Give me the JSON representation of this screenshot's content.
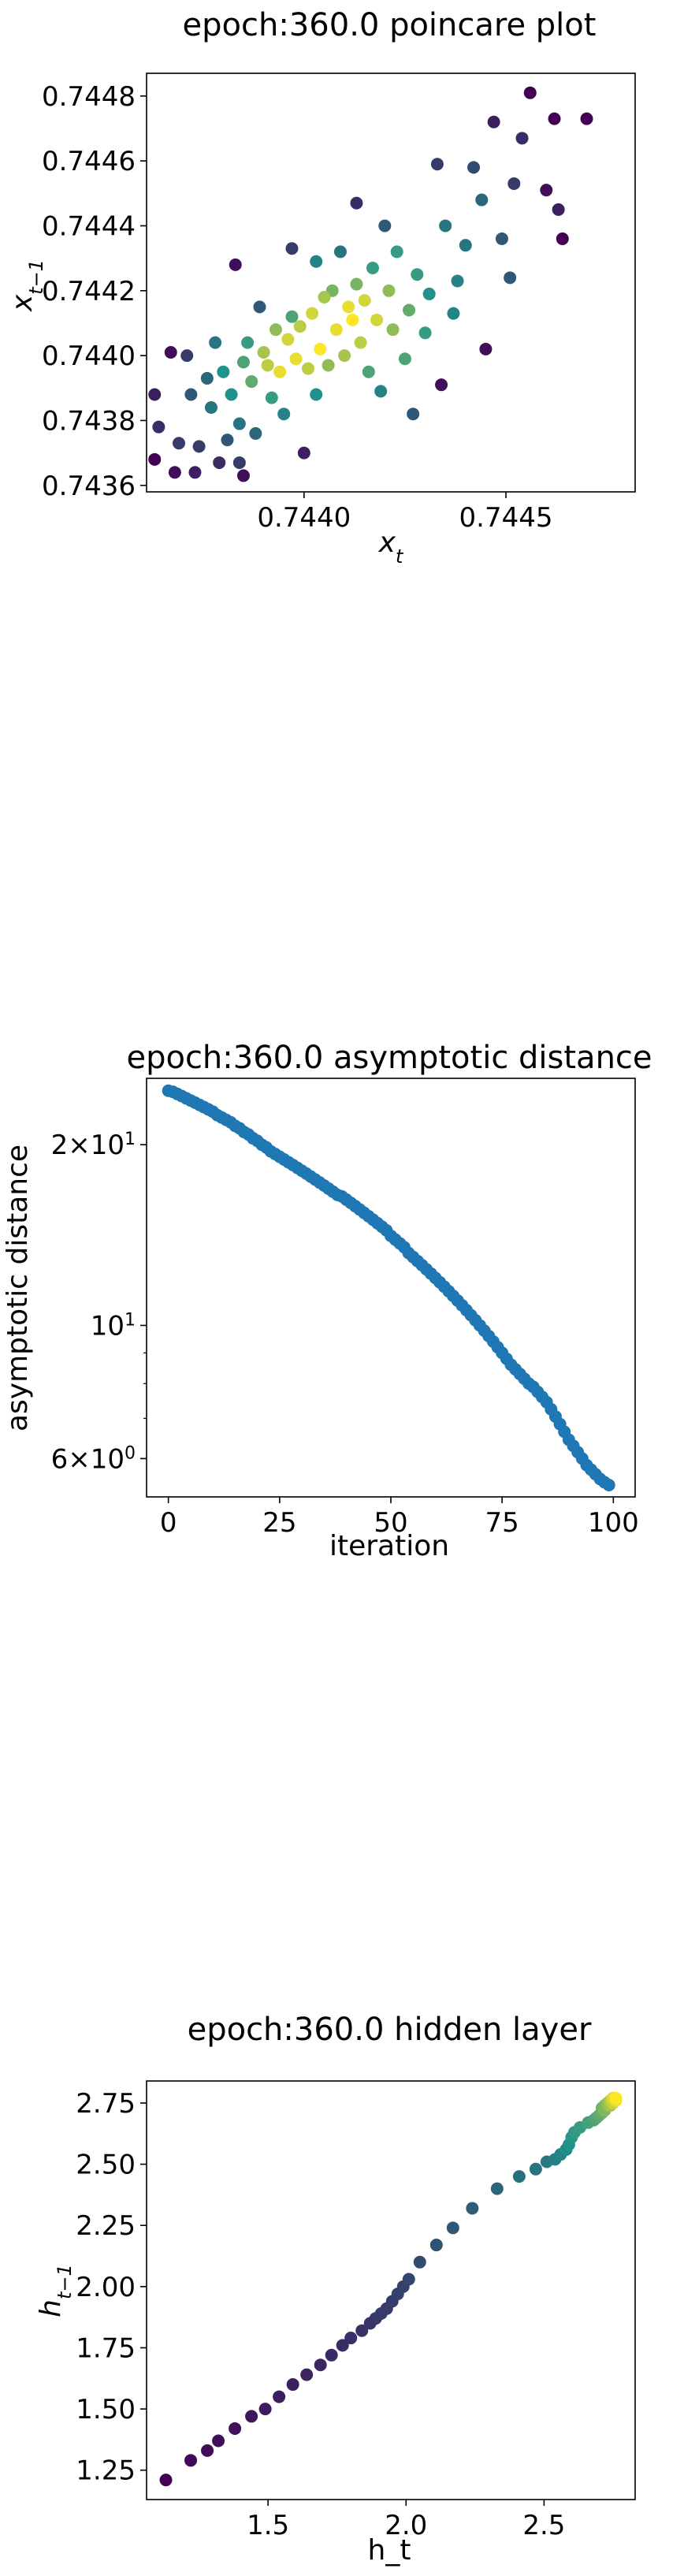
{
  "chart_data": [
    {
      "type": "scatter",
      "title": "epoch:360.0 poincare plot",
      "xlabel": "x_t",
      "ylabel": "x_{t-1}",
      "xlim": [
        0.74361,
        0.74482
      ],
      "ylim": [
        0.74358,
        0.74487
      ],
      "x_ticks": [
        {
          "v": 0.744,
          "label": "0.7440"
        },
        {
          "v": 0.7445,
          "label": "0.7445"
        }
      ],
      "y_ticks": [
        {
          "v": 0.7436,
          "label": "0.7436"
        },
        {
          "v": 0.7438,
          "label": "0.7438"
        },
        {
          "v": 0.744,
          "label": "0.7440"
        },
        {
          "v": 0.7442,
          "label": "0.7442"
        },
        {
          "v": 0.7444,
          "label": "0.7444"
        },
        {
          "v": 0.7446,
          "label": "0.7446"
        },
        {
          "v": 0.7448,
          "label": "0.7448"
        }
      ],
      "grid": false,
      "legend": "none",
      "colormap": "viridis",
      "colors": {
        "low": "#440154",
        "mid": "#21918c",
        "high": "#fde725"
      },
      "points": [
        {
          "x": 0.74363,
          "y": 0.74368,
          "c": 0.0
        },
        {
          "x": 0.74363,
          "y": 0.74388,
          "c": 0.1
        },
        {
          "x": 0.74364,
          "y": 0.74378,
          "c": 0.15
        },
        {
          "x": 0.74367,
          "y": 0.74401,
          "c": 0.05
        },
        {
          "x": 0.74368,
          "y": 0.74364,
          "c": 0.05
        },
        {
          "x": 0.74369,
          "y": 0.74373,
          "c": 0.2
        },
        {
          "x": 0.74371,
          "y": 0.744,
          "c": 0.2
        },
        {
          "x": 0.74372,
          "y": 0.74388,
          "c": 0.3
        },
        {
          "x": 0.74373,
          "y": 0.74364,
          "c": 0.1
        },
        {
          "x": 0.74374,
          "y": 0.74372,
          "c": 0.2
        },
        {
          "x": 0.74376,
          "y": 0.74393,
          "c": 0.35
        },
        {
          "x": 0.74377,
          "y": 0.74384,
          "c": 0.4
        },
        {
          "x": 0.74378,
          "y": 0.74404,
          "c": 0.4
        },
        {
          "x": 0.74379,
          "y": 0.74367,
          "c": 0.15
        },
        {
          "x": 0.7438,
          "y": 0.74395,
          "c": 0.5
        },
        {
          "x": 0.74381,
          "y": 0.74374,
          "c": 0.3
        },
        {
          "x": 0.74382,
          "y": 0.74388,
          "c": 0.5
        },
        {
          "x": 0.74383,
          "y": 0.74428,
          "c": 0.05
        },
        {
          "x": 0.74384,
          "y": 0.74367,
          "c": 0.2
        },
        {
          "x": 0.74384,
          "y": 0.74379,
          "c": 0.4
        },
        {
          "x": 0.74385,
          "y": 0.74363,
          "c": 0.05
        },
        {
          "x": 0.74385,
          "y": 0.74398,
          "c": 0.6
        },
        {
          "x": 0.74386,
          "y": 0.74404,
          "c": 0.55
        },
        {
          "x": 0.74387,
          "y": 0.74392,
          "c": 0.65
        },
        {
          "x": 0.74388,
          "y": 0.74376,
          "c": 0.35
        },
        {
          "x": 0.74389,
          "y": 0.74415,
          "c": 0.3
        },
        {
          "x": 0.7439,
          "y": 0.74401,
          "c": 0.8
        },
        {
          "x": 0.74391,
          "y": 0.74397,
          "c": 0.85
        },
        {
          "x": 0.74392,
          "y": 0.74387,
          "c": 0.55
        },
        {
          "x": 0.74393,
          "y": 0.74408,
          "c": 0.75
        },
        {
          "x": 0.74394,
          "y": 0.74395,
          "c": 0.95
        },
        {
          "x": 0.74395,
          "y": 0.74382,
          "c": 0.45
        },
        {
          "x": 0.74396,
          "y": 0.74405,
          "c": 0.9
        },
        {
          "x": 0.74397,
          "y": 0.74412,
          "c": 0.6
        },
        {
          "x": 0.74397,
          "y": 0.74433,
          "c": 0.2
        },
        {
          "x": 0.74398,
          "y": 0.74399,
          "c": 0.95
        },
        {
          "x": 0.74399,
          "y": 0.74409,
          "c": 0.85
        },
        {
          "x": 0.744,
          "y": 0.7437,
          "c": 0.1
        },
        {
          "x": 0.74401,
          "y": 0.74396,
          "c": 0.85
        },
        {
          "x": 0.74402,
          "y": 0.74413,
          "c": 0.9
        },
        {
          "x": 0.74403,
          "y": 0.74388,
          "c": 0.5
        },
        {
          "x": 0.74403,
          "y": 0.74429,
          "c": 0.45
        },
        {
          "x": 0.74404,
          "y": 0.74402,
          "c": 1.0
        },
        {
          "x": 0.74405,
          "y": 0.74418,
          "c": 0.8
        },
        {
          "x": 0.74406,
          "y": 0.74397,
          "c": 0.75
        },
        {
          "x": 0.74407,
          "y": 0.7442,
          "c": 0.7
        },
        {
          "x": 0.74408,
          "y": 0.74408,
          "c": 0.95
        },
        {
          "x": 0.74409,
          "y": 0.74432,
          "c": 0.4
        },
        {
          "x": 0.7441,
          "y": 0.744,
          "c": 0.8
        },
        {
          "x": 0.74411,
          "y": 0.74415,
          "c": 0.95
        },
        {
          "x": 0.74412,
          "y": 0.74411,
          "c": 1.0
        },
        {
          "x": 0.74413,
          "y": 0.74447,
          "c": 0.15
        },
        {
          "x": 0.74413,
          "y": 0.74422,
          "c": 0.7
        },
        {
          "x": 0.74414,
          "y": 0.74404,
          "c": 0.85
        },
        {
          "x": 0.74415,
          "y": 0.74417,
          "c": 0.9
        },
        {
          "x": 0.74416,
          "y": 0.74395,
          "c": 0.6
        },
        {
          "x": 0.74417,
          "y": 0.74427,
          "c": 0.55
        },
        {
          "x": 0.74418,
          "y": 0.74411,
          "c": 0.9
        },
        {
          "x": 0.74419,
          "y": 0.74389,
          "c": 0.45
        },
        {
          "x": 0.7442,
          "y": 0.7444,
          "c": 0.3
        },
        {
          "x": 0.74421,
          "y": 0.7442,
          "c": 0.75
        },
        {
          "x": 0.74422,
          "y": 0.74408,
          "c": 0.75
        },
        {
          "x": 0.74423,
          "y": 0.74432,
          "c": 0.55
        },
        {
          "x": 0.74425,
          "y": 0.74399,
          "c": 0.6
        },
        {
          "x": 0.74426,
          "y": 0.74414,
          "c": 0.65
        },
        {
          "x": 0.74427,
          "y": 0.74382,
          "c": 0.3
        },
        {
          "x": 0.74428,
          "y": 0.74425,
          "c": 0.55
        },
        {
          "x": 0.7443,
          "y": 0.74407,
          "c": 0.55
        },
        {
          "x": 0.74431,
          "y": 0.74419,
          "c": 0.5
        },
        {
          "x": 0.74433,
          "y": 0.74459,
          "c": 0.2
        },
        {
          "x": 0.74434,
          "y": 0.74391,
          "c": 0.05
        },
        {
          "x": 0.74435,
          "y": 0.7444,
          "c": 0.4
        },
        {
          "x": 0.74437,
          "y": 0.74413,
          "c": 0.45
        },
        {
          "x": 0.74438,
          "y": 0.74423,
          "c": 0.45
        },
        {
          "x": 0.7444,
          "y": 0.74434,
          "c": 0.4
        },
        {
          "x": 0.74442,
          "y": 0.74458,
          "c": 0.25
        },
        {
          "x": 0.74444,
          "y": 0.74448,
          "c": 0.35
        },
        {
          "x": 0.74445,
          "y": 0.74402,
          "c": 0.05
        },
        {
          "x": 0.74447,
          "y": 0.74472,
          "c": 0.1
        },
        {
          "x": 0.74449,
          "y": 0.74436,
          "c": 0.3
        },
        {
          "x": 0.74451,
          "y": 0.74424,
          "c": 0.3
        },
        {
          "x": 0.74452,
          "y": 0.74453,
          "c": 0.2
        },
        {
          "x": 0.74454,
          "y": 0.74467,
          "c": 0.15
        },
        {
          "x": 0.74456,
          "y": 0.74481,
          "c": 0.0
        },
        {
          "x": 0.7446,
          "y": 0.74451,
          "c": 0.05
        },
        {
          "x": 0.74462,
          "y": 0.74473,
          "c": 0.0
        },
        {
          "x": 0.74463,
          "y": 0.74445,
          "c": 0.1
        },
        {
          "x": 0.74464,
          "y": 0.74436,
          "c": 0.0
        },
        {
          "x": 0.7447,
          "y": 0.74473,
          "c": 0.0
        }
      ]
    },
    {
      "type": "scatter",
      "title": "epoch:360.0 asymptotic distance",
      "xlabel": "iteration",
      "ylabel": "asymptotic distance",
      "yscale": "log",
      "xlim": [
        -4.9,
        104.9
      ],
      "ylim": [
        5.18,
        25.8
      ],
      "x_ticks": [
        {
          "v": 0,
          "label": "0"
        },
        {
          "v": 25,
          "label": "25"
        },
        {
          "v": 50,
          "label": "50"
        },
        {
          "v": 75,
          "label": "75"
        },
        {
          "v": 100,
          "label": "100"
        }
      ],
      "y_ticks": [
        {
          "v": 6,
          "base": "6",
          "exp": "0"
        },
        {
          "v": 10,
          "base": "10",
          "exp": "1"
        },
        {
          "v": 20,
          "base": "2",
          "exp": "1"
        }
      ],
      "grid": false,
      "legend": "none",
      "colors": {
        "marker": "#1f77b4"
      },
      "x_start": 0,
      "x_step": 1,
      "y": [
        24.6,
        24.5,
        24.3,
        24.1,
        23.9,
        23.7,
        23.5,
        23.3,
        23.1,
        22.9,
        22.7,
        22.4,
        22.2,
        22.0,
        21.8,
        21.5,
        21.3,
        21.0,
        20.8,
        20.5,
        20.3,
        20.0,
        19.8,
        19.5,
        19.3,
        19.1,
        18.9,
        18.7,
        18.5,
        18.3,
        18.1,
        17.9,
        17.7,
        17.5,
        17.3,
        17.1,
        16.9,
        16.7,
        16.5,
        16.4,
        16.2,
        16.0,
        15.8,
        15.6,
        15.4,
        15.2,
        15.0,
        14.8,
        14.6,
        14.4,
        14.1,
        13.9,
        13.7,
        13.5,
        13.2,
        13.0,
        12.8,
        12.6,
        12.4,
        12.2,
        12.0,
        11.8,
        11.6,
        11.4,
        11.2,
        11.0,
        10.8,
        10.6,
        10.4,
        10.2,
        10.0,
        9.8,
        9.6,
        9.4,
        9.2,
        9.0,
        8.8,
        8.6,
        8.45,
        8.3,
        8.15,
        8.0,
        7.9,
        7.75,
        7.6,
        7.45,
        7.25,
        7.05,
        6.85,
        6.65,
        6.45,
        6.3,
        6.15,
        6.0,
        5.85,
        5.75,
        5.65,
        5.55,
        5.48,
        5.42
      ]
    },
    {
      "type": "scatter",
      "title": "epoch:360.0 hidden layer",
      "xlabel": "h_t",
      "ylabel": "h_{t-1}",
      "xlim": [
        1.06,
        2.83
      ],
      "ylim": [
        1.13,
        2.84
      ],
      "x_ticks": [
        {
          "v": 1.5,
          "label": "1.5"
        },
        {
          "v": 2.0,
          "label": "2.0"
        },
        {
          "v": 2.5,
          "label": "2.5"
        }
      ],
      "y_ticks": [
        {
          "v": 1.25,
          "label": "1.25"
        },
        {
          "v": 1.5,
          "label": "1.50"
        },
        {
          "v": 1.75,
          "label": "1.75"
        },
        {
          "v": 2.0,
          "label": "2.00"
        },
        {
          "v": 2.25,
          "label": "2.25"
        },
        {
          "v": 2.5,
          "label": "2.50"
        },
        {
          "v": 2.75,
          "label": "2.75"
        }
      ],
      "grid": false,
      "legend": "none",
      "colormap": "viridis",
      "colors": {
        "low": "#440154",
        "mid": "#21918c",
        "high": "#fde725"
      },
      "points": [
        {
          "x": 1.13,
          "y": 1.21,
          "c": 0.0
        },
        {
          "x": 1.22,
          "y": 1.29,
          "c": 0.02
        },
        {
          "x": 1.28,
          "y": 1.33,
          "c": 0.04
        },
        {
          "x": 1.32,
          "y": 1.37,
          "c": 0.05
        },
        {
          "x": 1.38,
          "y": 1.42,
          "c": 0.06
        },
        {
          "x": 1.44,
          "y": 1.47,
          "c": 0.08
        },
        {
          "x": 1.49,
          "y": 1.5,
          "c": 0.09
        },
        {
          "x": 1.54,
          "y": 1.55,
          "c": 0.1
        },
        {
          "x": 1.59,
          "y": 1.6,
          "c": 0.11
        },
        {
          "x": 1.64,
          "y": 1.64,
          "c": 0.12
        },
        {
          "x": 1.69,
          "y": 1.68,
          "c": 0.13
        },
        {
          "x": 1.73,
          "y": 1.72,
          "c": 0.14
        },
        {
          "x": 1.77,
          "y": 1.76,
          "c": 0.15
        },
        {
          "x": 1.8,
          "y": 1.79,
          "c": 0.16
        },
        {
          "x": 1.84,
          "y": 1.82,
          "c": 0.17
        },
        {
          "x": 1.87,
          "y": 1.85,
          "c": 0.18
        },
        {
          "x": 1.89,
          "y": 1.87,
          "c": 0.19
        },
        {
          "x": 1.91,
          "y": 1.89,
          "c": 0.2
        },
        {
          "x": 1.93,
          "y": 1.91,
          "c": 0.2
        },
        {
          "x": 1.95,
          "y": 1.94,
          "c": 0.21
        },
        {
          "x": 1.97,
          "y": 1.97,
          "c": 0.22
        },
        {
          "x": 1.99,
          "y": 2.0,
          "c": 0.23
        },
        {
          "x": 2.01,
          "y": 2.03,
          "c": 0.24
        },
        {
          "x": 2.05,
          "y": 2.1,
          "c": 0.26
        },
        {
          "x": 2.11,
          "y": 2.17,
          "c": 0.28
        },
        {
          "x": 2.17,
          "y": 2.24,
          "c": 0.3
        },
        {
          "x": 2.24,
          "y": 2.32,
          "c": 0.32
        },
        {
          "x": 2.33,
          "y": 2.4,
          "c": 0.35
        },
        {
          "x": 2.41,
          "y": 2.45,
          "c": 0.38
        },
        {
          "x": 2.47,
          "y": 2.48,
          "c": 0.4
        },
        {
          "x": 2.51,
          "y": 2.51,
          "c": 0.42
        },
        {
          "x": 2.54,
          "y": 2.52,
          "c": 0.44
        },
        {
          "x": 2.56,
          "y": 2.54,
          "c": 0.46
        },
        {
          "x": 2.58,
          "y": 2.56,
          "c": 0.48
        },
        {
          "x": 2.59,
          "y": 2.58,
          "c": 0.5
        },
        {
          "x": 2.6,
          "y": 2.61,
          "c": 0.52
        },
        {
          "x": 2.61,
          "y": 2.63,
          "c": 0.54
        },
        {
          "x": 2.63,
          "y": 2.65,
          "c": 0.56
        },
        {
          "x": 2.66,
          "y": 2.67,
          "c": 0.58
        },
        {
          "x": 2.68,
          "y": 2.68,
          "c": 0.6
        },
        {
          "x": 2.69,
          "y": 2.69,
          "c": 0.62
        },
        {
          "x": 2.7,
          "y": 2.7,
          "c": 0.64
        },
        {
          "x": 2.71,
          "y": 2.71,
          "c": 0.66
        },
        {
          "x": 2.71,
          "y": 2.73,
          "c": 0.68
        },
        {
          "x": 2.72,
          "y": 2.74,
          "c": 0.7
        },
        {
          "x": 2.72,
          "y": 2.72,
          "c": 0.72
        },
        {
          "x": 2.73,
          "y": 2.74,
          "c": 0.74
        },
        {
          "x": 2.73,
          "y": 2.75,
          "c": 0.76
        },
        {
          "x": 2.74,
          "y": 2.74,
          "c": 0.8
        },
        {
          "x": 2.74,
          "y": 2.76,
          "c": 0.84
        },
        {
          "x": 2.75,
          "y": 2.75,
          "c": 0.88
        },
        {
          "x": 2.75,
          "y": 2.77,
          "c": 0.92
        },
        {
          "x": 2.76,
          "y": 2.76,
          "c": 0.96
        },
        {
          "x": 2.76,
          "y": 2.77,
          "c": 1.0
        }
      ]
    }
  ]
}
